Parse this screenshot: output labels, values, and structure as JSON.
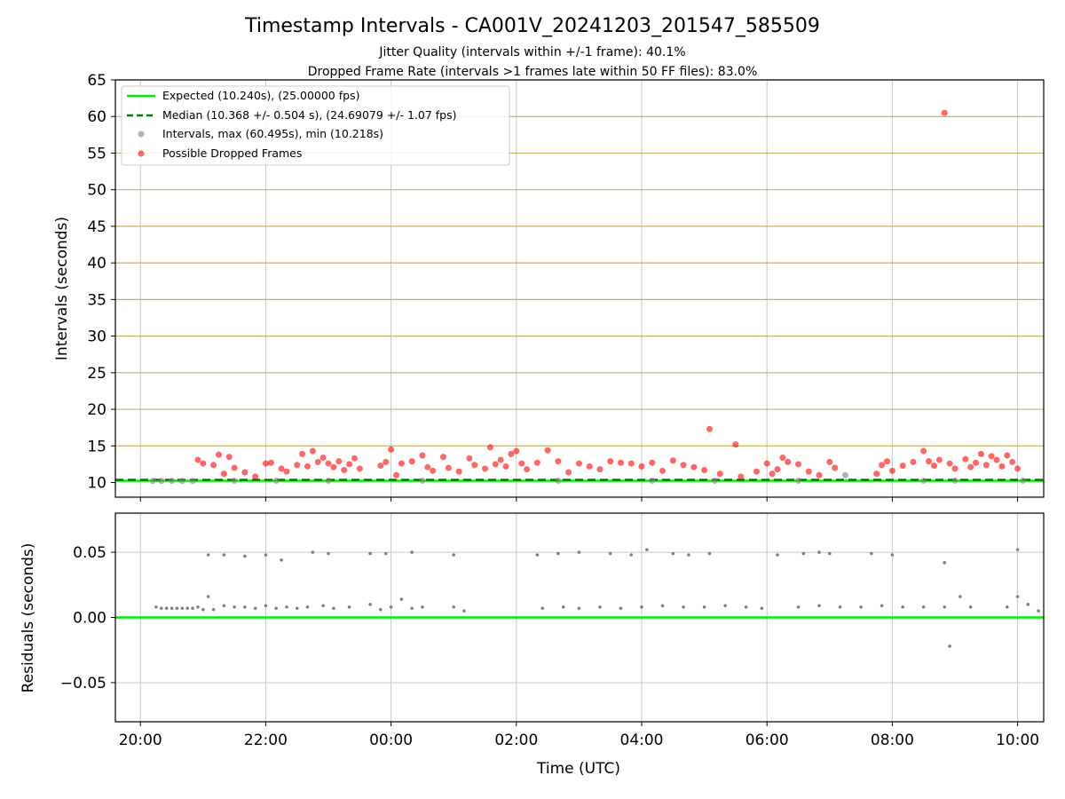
{
  "colors": {
    "expected": "#00ee00",
    "median": "#008000",
    "intervals": "#808080",
    "dropped": "#ff0000",
    "grid_upper": "#c8b464",
    "grid": "#c8c8c8"
  },
  "chart_data": [
    {
      "type": "scatter",
      "title": "Timestamp Intervals - CA001V_20241203_201547_585509",
      "subtitle_1": "Jitter Quality (intervals within +/-1 frame): 40.1%",
      "subtitle_2": "Dropped Frame Rate (intervals >1 frames late within 50 FF files): 83.0%",
      "xlabel": "",
      "ylabel": "Intervals (seconds)",
      "xlim": [
        "19:36",
        "10:25"
      ],
      "ylim": [
        8,
        65
      ],
      "yticks": [
        10,
        15,
        20,
        25,
        30,
        35,
        40,
        45,
        50,
        55,
        60,
        65
      ],
      "grid": true,
      "legend_position": "top-left",
      "legend": [
        "Expected (10.240s), (25.00000 fps)",
        "Median (10.368 +/- 0.504 s), (24.69079 +/- 1.07 fps)",
        "Intervals, max (60.495s), min (10.218s)",
        "Possible Dropped Frames"
      ],
      "series": [
        {
          "name": "Expected (10.240s), (25.00000 fps)",
          "kind": "hline",
          "y": 10.24
        },
        {
          "name": "Median (10.368 +/- 0.504 s), (24.69079 +/- 1.07 fps)",
          "kind": "hline-dashed",
          "y": 10.368
        },
        {
          "name": "Intervals, max (60.495s), min (10.218s)",
          "kind": "scatter",
          "points": [
            [
              "20:12",
              10.22
            ],
            [
              "20:20",
              10.23
            ],
            [
              "20:30",
              10.22
            ],
            [
              "20:40",
              10.23
            ],
            [
              "20:50",
              10.22
            ],
            [
              "21:30",
              10.25
            ],
            [
              "22:10",
              10.25
            ],
            [
              "23:00",
              10.24
            ],
            [
              "00:30",
              10.25
            ],
            [
              "02:40",
              10.24
            ],
            [
              "04:10",
              10.25
            ],
            [
              "05:10",
              10.24
            ],
            [
              "06:30",
              10.25
            ],
            [
              "07:15",
              11.0
            ],
            [
              "08:30",
              10.25
            ],
            [
              "09:00",
              10.26
            ],
            [
              "10:05",
              10.25
            ]
          ]
        },
        {
          "name": "Possible Dropped Frames",
          "kind": "scatter",
          "points": [
            [
              "20:55",
              13.1
            ],
            [
              "21:00",
              12.6
            ],
            [
              "21:10",
              12.4
            ],
            [
              "21:15",
              13.8
            ],
            [
              "21:20",
              11.2
            ],
            [
              "21:25",
              13.5
            ],
            [
              "21:30",
              12.0
            ],
            [
              "21:40",
              11.4
            ],
            [
              "21:50",
              10.8
            ],
            [
              "22:00",
              12.6
            ],
            [
              "22:05",
              12.7
            ],
            [
              "22:15",
              11.9
            ],
            [
              "22:20",
              11.5
            ],
            [
              "22:30",
              12.4
            ],
            [
              "22:35",
              13.9
            ],
            [
              "22:40",
              12.2
            ],
            [
              "22:45",
              14.3
            ],
            [
              "22:50",
              12.8
            ],
            [
              "22:55",
              13.4
            ],
            [
              "23:00",
              12.6
            ],
            [
              "23:05",
              12.1
            ],
            [
              "23:10",
              12.9
            ],
            [
              "23:15",
              11.7
            ],
            [
              "23:20",
              12.5
            ],
            [
              "23:25",
              13.3
            ],
            [
              "23:30",
              11.9
            ],
            [
              "23:50",
              12.3
            ],
            [
              "23:55",
              12.8
            ],
            [
              "00:00",
              14.5
            ],
            [
              "00:05",
              11.0
            ],
            [
              "00:10",
              12.6
            ],
            [
              "00:20",
              12.9
            ],
            [
              "00:30",
              13.7
            ],
            [
              "00:35",
              12.1
            ],
            [
              "00:40",
              11.6
            ],
            [
              "00:50",
              13.5
            ],
            [
              "00:55",
              12.0
            ],
            [
              "01:05",
              11.5
            ],
            [
              "01:15",
              13.3
            ],
            [
              "01:20",
              12.4
            ],
            [
              "01:30",
              11.9
            ],
            [
              "01:35",
              14.8
            ],
            [
              "01:40",
              12.5
            ],
            [
              "01:45",
              13.1
            ],
            [
              "01:50",
              12.2
            ],
            [
              "01:55",
              13.9
            ],
            [
              "02:00",
              14.3
            ],
            [
              "02:05",
              12.6
            ],
            [
              "02:10",
              11.8
            ],
            [
              "02:20",
              12.7
            ],
            [
              "02:30",
              14.4
            ],
            [
              "02:40",
              12.9
            ],
            [
              "02:50",
              11.4
            ],
            [
              "03:00",
              12.6
            ],
            [
              "03:10",
              12.2
            ],
            [
              "03:20",
              11.8
            ],
            [
              "03:30",
              12.9
            ],
            [
              "03:40",
              12.7
            ],
            [
              "03:50",
              12.6
            ],
            [
              "04:00",
              12.2
            ],
            [
              "04:10",
              12.7
            ],
            [
              "04:20",
              11.6
            ],
            [
              "04:30",
              13.0
            ],
            [
              "04:40",
              12.4
            ],
            [
              "04:50",
              12.1
            ],
            [
              "05:00",
              11.7
            ],
            [
              "05:05",
              17.3
            ],
            [
              "05:15",
              11.2
            ],
            [
              "05:30",
              15.2
            ],
            [
              "05:35",
              10.8
            ],
            [
              "05:50",
              11.5
            ],
            [
              "06:00",
              12.6
            ],
            [
              "06:05",
              11.2
            ],
            [
              "06:10",
              11.8
            ],
            [
              "06:15",
              13.4
            ],
            [
              "06:20",
              12.8
            ],
            [
              "06:30",
              12.5
            ],
            [
              "06:40",
              11.5
            ],
            [
              "06:50",
              11.0
            ],
            [
              "07:00",
              12.8
            ],
            [
              "07:05",
              12.0
            ],
            [
              "07:45",
              11.2
            ],
            [
              "07:50",
              12.4
            ],
            [
              "07:55",
              12.9
            ],
            [
              "08:00",
              11.6
            ],
            [
              "08:10",
              12.3
            ],
            [
              "08:20",
              12.8
            ],
            [
              "08:30",
              14.3
            ],
            [
              "08:35",
              12.9
            ],
            [
              "08:40",
              12.3
            ],
            [
              "08:45",
              13.1
            ],
            [
              "08:50",
              60.5
            ],
            [
              "08:55",
              12.6
            ],
            [
              "09:00",
              11.9
            ],
            [
              "09:10",
              13.2
            ],
            [
              "09:15",
              12.1
            ],
            [
              "09:20",
              12.7
            ],
            [
              "09:25",
              13.9
            ],
            [
              "09:30",
              12.4
            ],
            [
              "09:35",
              13.6
            ],
            [
              "09:40",
              13.1
            ],
            [
              "09:45",
              12.2
            ],
            [
              "09:50",
              13.7
            ],
            [
              "09:55",
              12.8
            ],
            [
              "10:00",
              11.9
            ]
          ]
        }
      ]
    },
    {
      "type": "scatter",
      "xlabel": "Time (UTC)",
      "ylabel": "Residuals (seconds)",
      "xlim": [
        "19:36",
        "10:25"
      ],
      "ylim": [
        -0.08,
        0.08
      ],
      "yticks": [
        -0.05,
        0.0,
        0.05
      ],
      "ytick_labels": [
        "−0.05",
        "0.00",
        "0.05"
      ],
      "xticks": [
        "20:00",
        "22:00",
        "00:00",
        "02:00",
        "04:00",
        "06:00",
        "08:00",
        "10:00"
      ],
      "grid": true,
      "series": [
        {
          "kind": "hline",
          "y": 0.0
        },
        {
          "kind": "scatter",
          "points": [
            [
              "20:15",
              0.008
            ],
            [
              "20:20",
              0.007
            ],
            [
              "20:25",
              0.007
            ],
            [
              "20:30",
              0.007
            ],
            [
              "20:35",
              0.007
            ],
            [
              "20:40",
              0.007
            ],
            [
              "20:45",
              0.007
            ],
            [
              "20:50",
              0.007
            ],
            [
              "20:55",
              0.008
            ],
            [
              "21:00",
              0.006
            ],
            [
              "21:05",
              0.016
            ],
            [
              "21:10",
              0.006
            ],
            [
              "21:20",
              0.009
            ],
            [
              "21:30",
              0.008
            ],
            [
              "21:40",
              0.008
            ],
            [
              "21:50",
              0.007
            ],
            [
              "22:00",
              0.009
            ],
            [
              "22:10",
              0.007
            ],
            [
              "22:20",
              0.008
            ],
            [
              "22:30",
              0.007
            ],
            [
              "22:40",
              0.008
            ],
            [
              "22:55",
              0.009
            ],
            [
              "23:05",
              0.007
            ],
            [
              "23:20",
              0.008
            ],
            [
              "23:40",
              0.01
            ],
            [
              "23:50",
              0.006
            ],
            [
              "00:00",
              0.008
            ],
            [
              "00:10",
              0.014
            ],
            [
              "00:20",
              0.007
            ],
            [
              "00:30",
              0.008
            ],
            [
              "01:00",
              0.008
            ],
            [
              "01:10",
              0.005
            ],
            [
              "02:25",
              0.007
            ],
            [
              "02:45",
              0.008
            ],
            [
              "03:00",
              0.007
            ],
            [
              "03:20",
              0.008
            ],
            [
              "03:40",
              0.007
            ],
            [
              "04:00",
              0.008
            ],
            [
              "04:20",
              0.009
            ],
            [
              "04:40",
              0.008
            ],
            [
              "05:00",
              0.008
            ],
            [
              "05:20",
              0.009
            ],
            [
              "05:40",
              0.008
            ],
            [
              "05:55",
              0.007
            ],
            [
              "06:30",
              0.008
            ],
            [
              "06:50",
              0.009
            ],
            [
              "07:10",
              0.008
            ],
            [
              "07:30",
              0.008
            ],
            [
              "07:50",
              0.009
            ],
            [
              "08:10",
              0.008
            ],
            [
              "08:30",
              0.008
            ],
            [
              "08:50",
              0.008
            ],
            [
              "08:55",
              -0.022
            ],
            [
              "09:05",
              0.016
            ],
            [
              "09:15",
              0.008
            ],
            [
              "09:50",
              0.008
            ],
            [
              "10:00",
              0.016
            ],
            [
              "10:10",
              0.01
            ],
            [
              "10:20",
              0.005
            ],
            [
              "21:05",
              0.048
            ],
            [
              "21:20",
              0.048
            ],
            [
              "21:40",
              0.047
            ],
            [
              "22:00",
              0.048
            ],
            [
              "22:15",
              0.044
            ],
            [
              "22:45",
              0.05
            ],
            [
              "23:00",
              0.049
            ],
            [
              "23:40",
              0.049
            ],
            [
              "23:55",
              0.049
            ],
            [
              "00:20",
              0.05
            ],
            [
              "01:00",
              0.048
            ],
            [
              "02:20",
              0.048
            ],
            [
              "02:40",
              0.049
            ],
            [
              "03:00",
              0.05
            ],
            [
              "03:30",
              0.049
            ],
            [
              "03:50",
              0.048
            ],
            [
              "04:05",
              0.052
            ],
            [
              "04:30",
              0.049
            ],
            [
              "04:45",
              0.048
            ],
            [
              "05:05",
              0.049
            ],
            [
              "06:10",
              0.048
            ],
            [
              "06:35",
              0.049
            ],
            [
              "06:50",
              0.05
            ],
            [
              "07:00",
              0.049
            ],
            [
              "07:40",
              0.049
            ],
            [
              "08:00",
              0.048
            ],
            [
              "08:50",
              0.042
            ],
            [
              "10:00",
              0.052
            ]
          ]
        }
      ]
    }
  ]
}
